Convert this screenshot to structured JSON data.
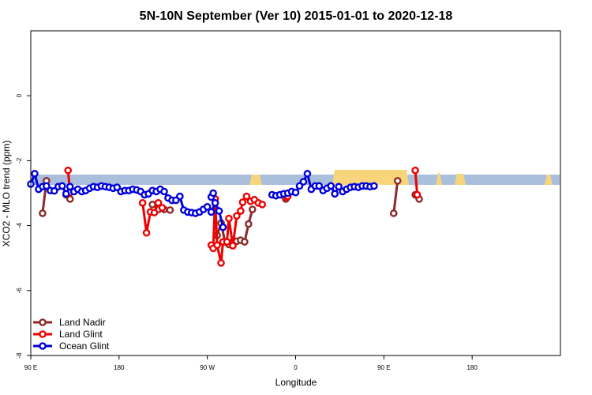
{
  "chart_data": {
    "type": "line",
    "title": "5N-10N September (Ver 10)   2015-01-01 to 2020-12-18",
    "xlabel": "Longitude",
    "ylabel": "XCO2 - MLO trend (ppm)",
    "xlim": [
      -90,
      180
    ],
    "ylim": [
      -8,
      2
    ],
    "x_ticks": [
      {
        "value": -90,
        "label": "90 E"
      },
      {
        "value": -45,
        "label": "180"
      },
      {
        "value": 0,
        "label": "90 W"
      },
      {
        "value": 45,
        "label": "0"
      },
      {
        "value": 90,
        "label": "90 E"
      },
      {
        "value": 135,
        "label": "180"
      }
    ],
    "y_ticks": [
      {
        "value": 0,
        "label": "0"
      },
      {
        "value": -2,
        "label": "-2"
      },
      {
        "value": -4,
        "label": "-4"
      },
      {
        "value": -6,
        "label": "-6"
      },
      {
        "value": -8,
        "label": "-8"
      }
    ],
    "grid": false,
    "legend_position": "bottom-left",
    "colors": {
      "ocean_band": "#a9bfdc",
      "land_band": "#f8d57a"
    },
    "series": [
      {
        "name": "Land Nadir",
        "color": "#8b2a2a",
        "segments": [
          [
            [
              -84,
              -3.62
            ],
            [
              -82,
              -2.62
            ]
          ],
          [
            [
              -72,
              -3.05
            ],
            [
              -70,
              -3.18
            ]
          ],
          [
            [
              -28,
              -3.35
            ],
            [
              -25,
              -3.5
            ],
            [
              -22,
              -3.5
            ],
            [
              -19,
              -3.52
            ]
          ],
          [
            [
              5,
              -4.3
            ],
            [
              7,
              -3.92
            ],
            [
              9,
              -4.5
            ],
            [
              11,
              -4.58
            ],
            [
              13,
              -4.5
            ],
            [
              15,
              -4.48
            ],
            [
              17,
              -4.45
            ],
            [
              19,
              -4.5
            ],
            [
              21,
              -3.95
            ],
            [
              23,
              -3.5
            ]
          ],
          [
            [
              38,
              -3.05
            ],
            [
              40,
              -3.18
            ]
          ],
          [
            [
              95,
              -3.62
            ],
            [
              97,
              -2.62
            ]
          ],
          [
            [
              106,
              -3.05
            ],
            [
              108,
              -3.18
            ]
          ]
        ]
      },
      {
        "name": "Land Glint",
        "color": "#ee0000",
        "segments": [
          [
            [
              -71,
              -2.3
            ],
            [
              -70,
              -2.98
            ]
          ],
          [
            [
              -33,
              -3.3
            ],
            [
              -31,
              -4.22
            ],
            [
              -29,
              -3.58
            ],
            [
              -27,
              -3.6
            ],
            [
              -25,
              -3.3
            ],
            [
              -23,
              -3.45
            ]
          ],
          [
            [
              2,
              -4.6
            ],
            [
              3,
              -4.7
            ],
            [
              4,
              -3.18
            ],
            [
              5,
              -4.6
            ],
            [
              7,
              -5.15
            ],
            [
              8,
              -4.5
            ],
            [
              10,
              -4.5
            ],
            [
              11,
              -3.78
            ],
            [
              13,
              -4.62
            ],
            [
              15,
              -3.7
            ],
            [
              17,
              -3.55
            ],
            [
              18,
              -3.28
            ],
            [
              20,
              -3.1
            ],
            [
              22,
              -3.25
            ],
            [
              24,
              -3.2
            ],
            [
              26,
              -3.3
            ],
            [
              28,
              -3.35
            ]
          ],
          [
            [
              40,
              -3.12
            ],
            [
              41,
              -3.1
            ]
          ],
          [
            [
              106,
              -2.3
            ],
            [
              107,
              -3.05
            ]
          ]
        ]
      },
      {
        "name": "Ocean Glint",
        "color": "#0000dd",
        "segments": [
          [
            [
              -90,
              -2.72
            ],
            [
              -88,
              -2.4
            ],
            [
              -86,
              -2.88
            ],
            [
              -84,
              -2.8
            ],
            [
              -82,
              -2.78
            ],
            [
              -80,
              -2.92
            ],
            [
              -78,
              -2.93
            ],
            [
              -76,
              -2.8
            ],
            [
              -74,
              -2.78
            ],
            [
              -72,
              -3.02
            ],
            [
              -70,
              -2.8
            ],
            [
              -68,
              -2.95
            ],
            [
              -66,
              -2.88
            ],
            [
              -64,
              -2.95
            ],
            [
              -62,
              -2.92
            ],
            [
              -60,
              -2.85
            ],
            [
              -58,
              -2.8
            ],
            [
              -56,
              -2.82
            ],
            [
              -54,
              -2.78
            ],
            [
              -52,
              -2.8
            ],
            [
              -50,
              -2.82
            ],
            [
              -48,
              -2.85
            ],
            [
              -46,
              -2.82
            ],
            [
              -44,
              -2.95
            ],
            [
              -42,
              -2.92
            ],
            [
              -40,
              -2.92
            ],
            [
              -38,
              -2.88
            ],
            [
              -36,
              -2.9
            ],
            [
              -34,
              -2.95
            ],
            [
              -32,
              -3.05
            ],
            [
              -30,
              -3.02
            ],
            [
              -28,
              -2.92
            ],
            [
              -26,
              -2.95
            ],
            [
              -24,
              -2.88
            ],
            [
              -22,
              -2.95
            ],
            [
              -20,
              -3.15
            ],
            [
              -18,
              -3.22
            ],
            [
              -16,
              -3.22
            ],
            [
              -14,
              -3.1
            ],
            [
              -12,
              -3.52
            ],
            [
              -10,
              -3.58
            ],
            [
              -8,
              -3.6
            ],
            [
              -6,
              -3.62
            ],
            [
              -4,
              -3.58
            ],
            [
              -2,
              -3.5
            ],
            [
              0,
              -3.42
            ],
            [
              2,
              -3.58
            ],
            [
              4,
              -3.3
            ],
            [
              6,
              -3.55
            ],
            [
              8,
              -4.05
            ]
          ],
          [
            [
              2,
              -3.12
            ],
            [
              3,
              -3.0
            ]
          ],
          [
            [
              33,
              -3.05
            ],
            [
              35,
              -3.08
            ],
            [
              37,
              -3.05
            ],
            [
              39,
              -3.02
            ],
            [
              41,
              -3.0
            ],
            [
              43,
              -2.95
            ],
            [
              45,
              -2.98
            ],
            [
              47,
              -2.78
            ],
            [
              49,
              -2.65
            ],
            [
              51,
              -2.4
            ],
            [
              53,
              -2.88
            ],
            [
              55,
              -2.78
            ],
            [
              57,
              -2.78
            ],
            [
              59,
              -2.92
            ],
            [
              61,
              -2.85
            ],
            [
              63,
              -2.78
            ],
            [
              65,
              -3.02
            ],
            [
              67,
              -2.8
            ],
            [
              69,
              -2.95
            ],
            [
              71,
              -2.88
            ],
            [
              73,
              -2.82
            ],
            [
              75,
              -2.8
            ],
            [
              77,
              -2.82
            ],
            [
              79,
              -2.78
            ],
            [
              81,
              -2.78
            ],
            [
              83,
              -2.8
            ],
            [
              85,
              -2.78
            ]
          ]
        ]
      }
    ]
  }
}
